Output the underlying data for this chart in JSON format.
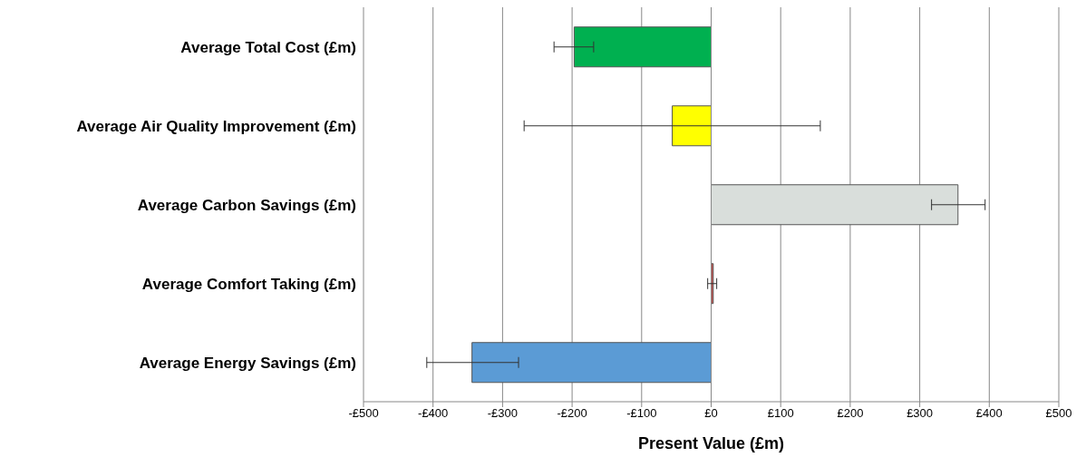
{
  "chart_data": {
    "type": "bar",
    "orientation": "horizontal",
    "xlabel": "Present Value (£m)",
    "categories": [
      "Average Total Cost (£m)",
      "Average Air Quality Improvement (£m)",
      "Average Carbon Savings (£m)",
      "Average Comfort Taking (£m)",
      "Average Energy Savings (£m)"
    ],
    "values": [
      -197,
      -56,
      355,
      3,
      -344
    ],
    "colors": [
      "#00b050",
      "#ffff00",
      "#d9dedb",
      "#c0504d",
      "#5b9bd5"
    ],
    "errors": [
      [
        -226,
        -169
      ],
      [
        -269,
        157
      ],
      [
        317,
        394
      ],
      [
        -5,
        8
      ],
      [
        -409,
        -277
      ]
    ],
    "xlim": [
      -500,
      500
    ],
    "xticks": [
      {
        "value": -500,
        "label": "-£500"
      },
      {
        "value": -400,
        "label": "-£400"
      },
      {
        "value": -300,
        "label": "-£300"
      },
      {
        "value": -200,
        "label": "-£200"
      },
      {
        "value": -100,
        "label": "-£100"
      },
      {
        "value": 0,
        "label": "£0"
      },
      {
        "value": 100,
        "label": "£100"
      },
      {
        "value": 200,
        "label": "£200"
      },
      {
        "value": 300,
        "label": "£300"
      },
      {
        "value": 400,
        "label": "£400"
      },
      {
        "value": 500,
        "label": "£500"
      }
    ],
    "grid": "x",
    "legend": false
  }
}
